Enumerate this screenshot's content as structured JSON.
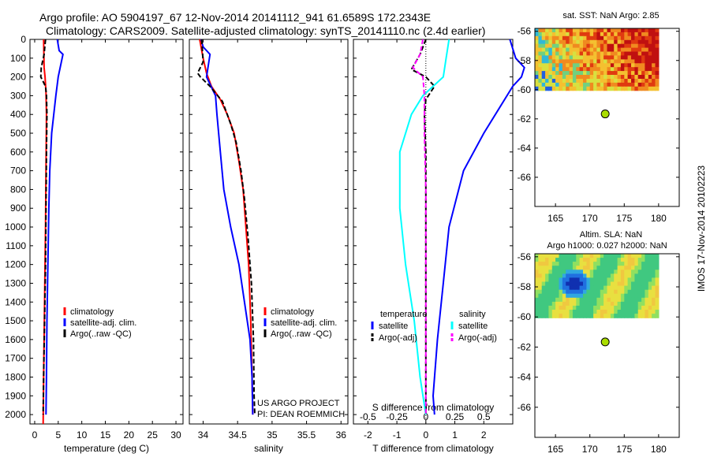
{
  "title": {
    "line1": "Argo profile: AO 5904197_67 12-Nov-2014 20141112_941 61.6589S 172.2343E",
    "line2": "Climatology: CARS2009. Satellite-adjusted climatology: synTS_20141110.nc (2.4d earlier)"
  },
  "side_stamp": "IMOS 17-Nov-2014 20102223",
  "project_note": {
    "line1": "US ARGO PROJECT",
    "line2": "PI: DEAN ROEMMICH"
  },
  "colors": {
    "climatology": "#ff0000",
    "satellite": "#0000ff",
    "argo": "#000000",
    "cyan": "#00ffff",
    "magenta": "#ff00ff",
    "marker": "#aadd00"
  },
  "chart_data": [
    {
      "id": "temperature",
      "type": "line",
      "xlabel": "temperature (deg C)",
      "xlim": [
        -1,
        31.5
      ],
      "xticks": [
        "0",
        "5",
        "10",
        "15",
        "20",
        "25",
        "30"
      ],
      "ylim": [
        0,
        2050
      ],
      "yticks": [
        "0",
        "100",
        "200",
        "300",
        "400",
        "500",
        "600",
        "700",
        "800",
        "900",
        "1000",
        "1100",
        "1200",
        "1300",
        "1400",
        "1500",
        "1600",
        "1700",
        "1800",
        "1900",
        "2000"
      ],
      "legend": [
        "climatology",
        "satellite-adj. clim.",
        "Argo(..raw -QC)"
      ],
      "series": [
        {
          "name": "climatology",
          "color": "red",
          "points": [
            [
              1.9,
              0
            ],
            [
              2.0,
              150
            ],
            [
              2.2,
              200
            ],
            [
              2.4,
              280
            ],
            [
              2.5,
              400
            ],
            [
              2.4,
              700
            ],
            [
              2.3,
              1000
            ],
            [
              2.1,
              1400
            ],
            [
              1.9,
              1800
            ],
            [
              1.8,
              2050
            ]
          ]
        },
        {
          "name": "satellite-adj. clim.",
          "color": "blue",
          "points": [
            [
              4.8,
              0
            ],
            [
              5.2,
              60
            ],
            [
              6.0,
              80
            ],
            [
              5.0,
              200
            ],
            [
              4.5,
              300
            ],
            [
              3.6,
              500
            ],
            [
              3.2,
              700
            ],
            [
              3.0,
              900
            ],
            [
              2.8,
              1200
            ],
            [
              2.6,
              1500
            ],
            [
              2.5,
              1800
            ],
            [
              2.4,
              2000
            ]
          ]
        },
        {
          "name": "Argo(..raw -QC)",
          "color": "black",
          "points": [
            [
              2.3,
              0
            ],
            [
              2.0,
              80
            ],
            [
              1.4,
              150
            ],
            [
              1.3,
              200
            ],
            [
              2.3,
              250
            ],
            [
              2.5,
              300
            ],
            [
              2.6,
              400
            ],
            [
              2.5,
              600
            ],
            [
              2.4,
              900
            ],
            [
              2.3,
              1200
            ],
            [
              2.1,
              1500
            ],
            [
              1.9,
              1800
            ],
            [
              1.8,
              2000
            ]
          ]
        }
      ]
    },
    {
      "id": "salinity",
      "type": "line",
      "xlabel": "salinity",
      "xlim": [
        33.8,
        36.1
      ],
      "xticks": [
        "34",
        "34.5",
        "35",
        "35.5",
        "36"
      ],
      "ylim": [
        0,
        2050
      ],
      "legend": [
        "climatology",
        "satellite-adj. clim.",
        "Argo(..raw -QC)"
      ],
      "series": [
        {
          "name": "climatology",
          "color": "red",
          "points": [
            [
              33.95,
              0
            ],
            [
              34.0,
              100
            ],
            [
              34.05,
              180
            ],
            [
              34.12,
              250
            ],
            [
              34.25,
              320
            ],
            [
              34.35,
              400
            ],
            [
              34.45,
              500
            ],
            [
              34.52,
              650
            ],
            [
              34.58,
              800
            ],
            [
              34.62,
              1000
            ],
            [
              34.66,
              1200
            ],
            [
              34.69,
              1500
            ],
            [
              34.71,
              1800
            ],
            [
              34.72,
              2000
            ]
          ]
        },
        {
          "name": "satellite-adj. clim.",
          "color": "blue",
          "points": [
            [
              33.97,
              0
            ],
            [
              34.0,
              40
            ],
            [
              34.1,
              80
            ],
            [
              34.05,
              200
            ],
            [
              34.18,
              300
            ],
            [
              34.2,
              400
            ],
            [
              34.25,
              600
            ],
            [
              34.3,
              800
            ],
            [
              34.4,
              1000
            ],
            [
              34.52,
              1200
            ],
            [
              34.6,
              1400
            ],
            [
              34.68,
              1600
            ],
            [
              34.71,
              1800
            ],
            [
              34.72,
              2000
            ]
          ]
        },
        {
          "name": "Argo(..raw -QC)",
          "color": "black",
          "points": [
            [
              33.98,
              0
            ],
            [
              34.0,
              120
            ],
            [
              33.92,
              180
            ],
            [
              33.96,
              200
            ],
            [
              34.1,
              250
            ],
            [
              34.28,
              330
            ],
            [
              34.4,
              450
            ],
            [
              34.48,
              550
            ],
            [
              34.55,
              700
            ],
            [
              34.6,
              850
            ],
            [
              34.65,
              1050
            ],
            [
              34.7,
              1300
            ],
            [
              34.73,
              1600
            ],
            [
              34.74,
              1900
            ],
            [
              34.75,
              2000
            ]
          ]
        }
      ]
    },
    {
      "id": "differences",
      "type": "line",
      "xlabel_top": "S difference from climatology",
      "xlabel": "T difference from climatology",
      "xlim": [
        -2.5,
        3.0
      ],
      "xticks": [
        "-2",
        "-1",
        "0",
        "1",
        "2"
      ],
      "xticks_top": [
        "-0.5",
        "-0.25",
        "0",
        "0.25",
        "0.5"
      ],
      "ylim": [
        0,
        2050
      ],
      "legend_left_title": "temperature",
      "legend_right_title": "salinity",
      "legend": [
        "satellite",
        "Argo(-adj)",
        "satellite",
        "Argo(-adj)"
      ],
      "series": [
        {
          "name": "satellite (T)",
          "color": "blue",
          "points": [
            [
              2.9,
              0
            ],
            [
              3.1,
              100
            ],
            [
              3.4,
              150
            ],
            [
              3.3,
              200
            ],
            [
              3.0,
              250
            ],
            [
              2.0,
              500
            ],
            [
              1.3,
              700
            ],
            [
              0.8,
              1000
            ],
            [
              0.6,
              1300
            ],
            [
              0.4,
              1600
            ],
            [
              0.25,
              1900
            ],
            [
              0.3,
              2000
            ]
          ]
        },
        {
          "name": "Argo(-adj) (T)",
          "color": "black",
          "points": [
            [
              0.0,
              0
            ],
            [
              -0.2,
              80
            ],
            [
              -0.5,
              160
            ],
            [
              0.0,
              200
            ],
            [
              0.3,
              250
            ],
            [
              0.0,
              320
            ],
            [
              -0.05,
              400
            ],
            [
              0.0,
              600
            ],
            [
              0.0,
              900
            ],
            [
              0.0,
              1200
            ],
            [
              0.0,
              1500
            ],
            [
              0.0,
              1800
            ],
            [
              0.0,
              2000
            ]
          ]
        },
        {
          "name": "satellite (S)",
          "color": "cyan",
          "points": [
            [
              0.8,
              0
            ],
            [
              0.7,
              100
            ],
            [
              0.6,
              200
            ],
            [
              -0.1,
              300
            ],
            [
              -0.5,
              400
            ],
            [
              -0.9,
              600
            ],
            [
              -0.9,
              900
            ],
            [
              -0.7,
              1200
            ],
            [
              -0.4,
              1500
            ],
            [
              -0.2,
              1800
            ],
            [
              0.0,
              2000
            ]
          ]
        },
        {
          "name": "Argo(-adj) (S)",
          "color": "magenta",
          "points": [
            [
              -0.1,
              0
            ],
            [
              -0.2,
              80
            ],
            [
              -0.45,
              150
            ],
            [
              -0.1,
              200
            ],
            [
              -0.05,
              300
            ],
            [
              -0.05,
              500
            ],
            [
              0.0,
              800
            ],
            [
              0.0,
              1100
            ],
            [
              0.0,
              1400
            ],
            [
              0.0,
              1700
            ],
            [
              0.0,
              2000
            ]
          ]
        }
      ]
    },
    {
      "id": "sst-map",
      "type": "heatmap",
      "title": "sat. SST: NaN Argo: 2.85",
      "xlim": [
        162,
        183
      ],
      "ylim": [
        -68,
        -55.8
      ],
      "xticks": [
        "165",
        "170",
        "175",
        "180"
      ],
      "yticks": [
        "-56",
        "-58",
        "-60",
        "-62",
        "-64",
        "-66"
      ],
      "marker": {
        "lon": 172.23,
        "lat": -61.66
      }
    },
    {
      "id": "sla-map",
      "type": "heatmap",
      "title": "Altim. SLA: NaN",
      "subtitle": "Argo h1000: 0.027 h2000: NaN",
      "xlim": [
        162,
        183
      ],
      "ylim": [
        -68,
        -55.8
      ],
      "xticks": [
        "165",
        "170",
        "175",
        "180"
      ],
      "yticks": [
        "-56",
        "-58",
        "-60",
        "-62",
        "-64",
        "-66"
      ],
      "marker": {
        "lon": 172.23,
        "lat": -61.66
      }
    }
  ]
}
